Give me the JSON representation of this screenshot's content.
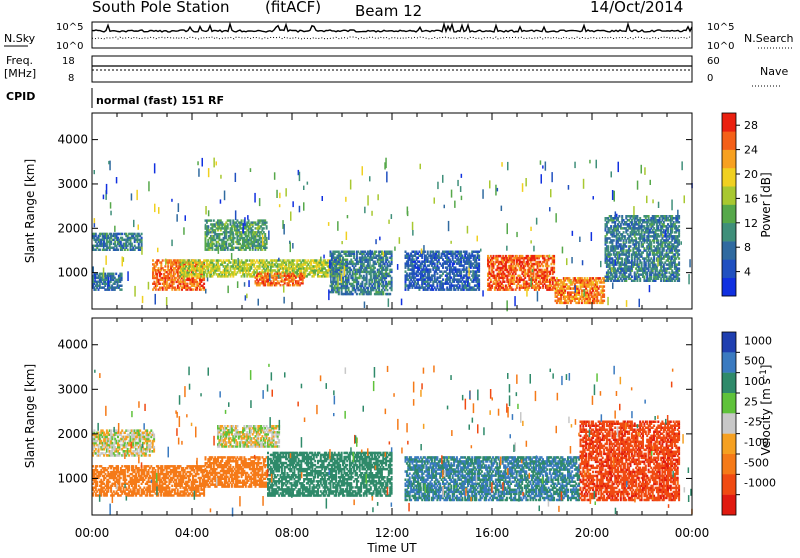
{
  "header": {
    "station": "South Pole Station",
    "mode": "(fitACF)",
    "beam": "Beam 12",
    "date": "14/Oct/2014"
  },
  "noise_panel": {
    "left_label": "N.Sky",
    "right_label": "N.Search",
    "ticks_left": [
      "10^5",
      "10^0"
    ],
    "ticks_right": [
      "10^5",
      "10^0"
    ]
  },
  "freq_panel": {
    "left_label_1": "Freq.",
    "left_label_2": "[MHz]",
    "right_label": "Nave",
    "ticks_left": [
      "18",
      "8"
    ],
    "ticks_right": [
      "60",
      "0"
    ]
  },
  "cpid_panel": {
    "label": "CPID",
    "text": "normal (fast) 151 RF"
  },
  "colors": {
    "power": [
      "#1030e0",
      "#2050c0",
      "#306aa0",
      "#3f8f7a",
      "#56a84a",
      "#a8c830",
      "#f0d020",
      "#f7a020",
      "#f46018",
      "#ea2010"
    ],
    "velocity": [
      "#1f3fb0",
      "#3a7ac0",
      "#2f8a6a",
      "#5fc23a",
      "#c8c8c8",
      "#f5a021",
      "#f57a18",
      "#f04a12",
      "#e01a10"
    ]
  },
  "chart_data": [
    {
      "type": "heatmap",
      "name": "Power [dB]",
      "ylabel": "Slant Range [km]",
      "xlabel": "Time UT",
      "xlim": [
        "00:00",
        "24:00"
      ],
      "ylim": [
        180,
        4600
      ],
      "x_ticks": [
        "00:00",
        "04:00",
        "08:00",
        "12:00",
        "16:00",
        "20:00",
        "00:00"
      ],
      "y_ticks": [
        "1000",
        "2000",
        "3000",
        "4000"
      ],
      "colorbar": {
        "label": "Power [dB]",
        "ticks": [
          "4",
          "8",
          "12",
          "16",
          "20",
          "24",
          "28"
        ],
        "range": [
          0,
          30
        ]
      },
      "regions": [
        {
          "t0": 0.0,
          "t1": 2.0,
          "r0": 1500,
          "r1": 1900,
          "value": 9
        },
        {
          "t0": 0.0,
          "t1": 1.2,
          "r0": 600,
          "r1": 1000,
          "value": 8
        },
        {
          "t0": 2.4,
          "t1": 4.5,
          "r0": 600,
          "r1": 1300,
          "value": 25
        },
        {
          "t0": 3.5,
          "t1": 10.0,
          "r0": 900,
          "r1": 1300,
          "value": 17
        },
        {
          "t0": 4.5,
          "t1": 7.0,
          "r0": 1500,
          "r1": 2200,
          "value": 12
        },
        {
          "t0": 6.5,
          "t1": 8.5,
          "r0": 700,
          "r1": 1000,
          "value": 25
        },
        {
          "t0": 9.5,
          "t1": 12.0,
          "r0": 500,
          "r1": 1500,
          "value": 9
        },
        {
          "t0": 12.5,
          "t1": 15.5,
          "r0": 600,
          "r1": 1500,
          "value": 6
        },
        {
          "t0": 15.8,
          "t1": 18.5,
          "r0": 600,
          "r1": 1400,
          "value": 26
        },
        {
          "t0": 18.5,
          "t1": 20.5,
          "r0": 300,
          "r1": 900,
          "value": 24
        },
        {
          "t0": 20.5,
          "t1": 23.5,
          "r0": 800,
          "r1": 2300,
          "value": 9
        }
      ]
    },
    {
      "type": "heatmap",
      "name": "Velocity [m s-1]",
      "ylabel": "Slant Range [km]",
      "xlabel": "Time UT",
      "xlim": [
        "00:00",
        "24:00"
      ],
      "ylim": [
        180,
        4600
      ],
      "x_ticks": [
        "00:00",
        "04:00",
        "08:00",
        "12:00",
        "16:00",
        "20:00",
        "00:00"
      ],
      "y_ticks": [
        "1000",
        "2000",
        "3000",
        "4000"
      ],
      "colorbar": {
        "label": "Velocity [m s-1]",
        "ticks": [
          "1000",
          "500",
          "100",
          "25",
          "-25",
          "-100",
          "-500",
          "-1000"
        ]
      },
      "regions": [
        {
          "t0": 0.0,
          "t1": 2.5,
          "r0": 1500,
          "r1": 2100,
          "value": 0
        },
        {
          "t0": 0.0,
          "t1": 4.5,
          "r0": 600,
          "r1": 1300,
          "value": -200
        },
        {
          "t0": 4.5,
          "t1": 7.0,
          "r0": 800,
          "r1": 1500,
          "value": -150
        },
        {
          "t0": 5.0,
          "t1": 7.5,
          "r0": 1700,
          "r1": 2200,
          "value": 0
        },
        {
          "t0": 7.0,
          "t1": 12.0,
          "r0": 600,
          "r1": 1600,
          "value": 200
        },
        {
          "t0": 12.5,
          "t1": 19.5,
          "r0": 500,
          "r1": 1500,
          "value": 300
        },
        {
          "t0": 19.5,
          "t1": 23.5,
          "r0": 500,
          "r1": 2300,
          "value": -600
        }
      ]
    }
  ]
}
